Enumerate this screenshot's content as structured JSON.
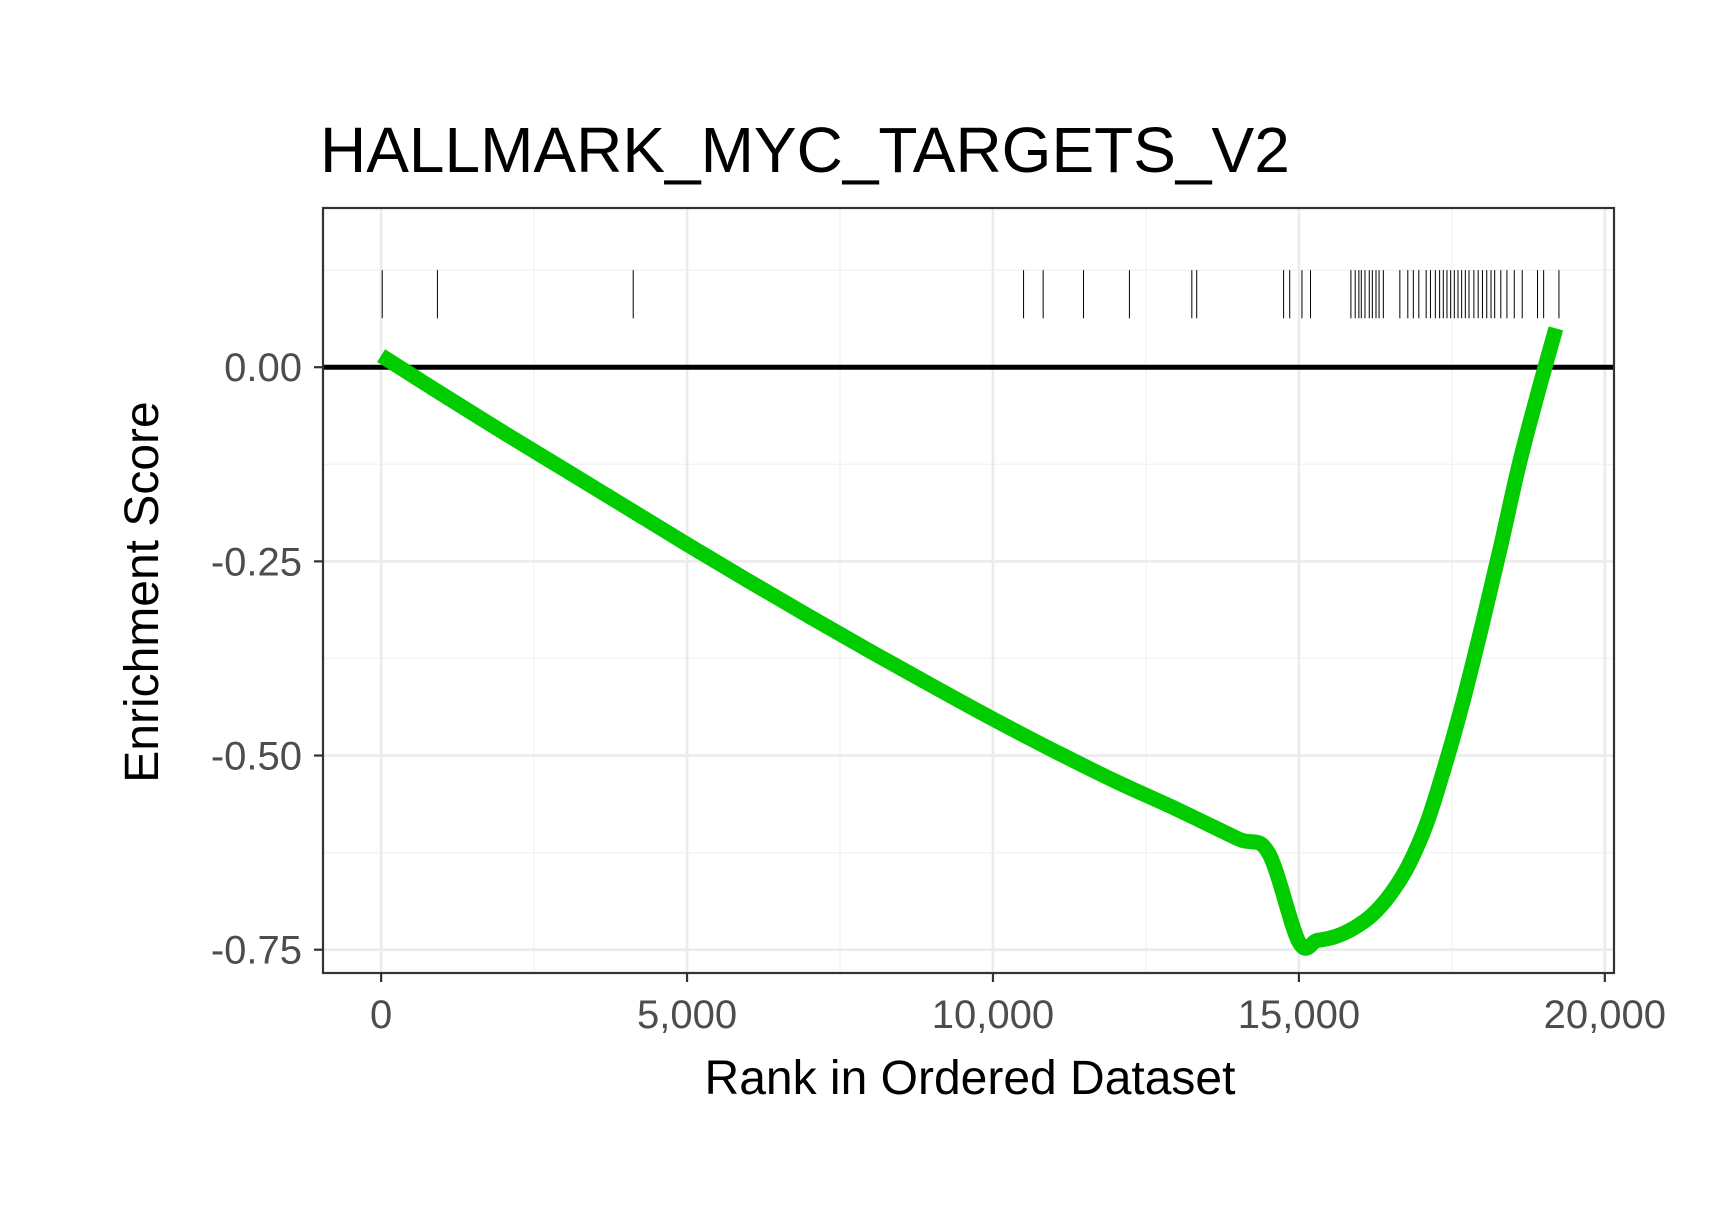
{
  "chart_data": {
    "type": "line",
    "title": "HALLMARK_MYC_TARGETS_V2",
    "xlabel": "Rank in Ordered Dataset",
    "ylabel": "Enrichment Score",
    "xlim": [
      -950,
      20150
    ],
    "ylim": [
      -0.78,
      0.205
    ],
    "x_ticks": [
      0,
      5000,
      10000,
      15000,
      20000
    ],
    "x_tick_labels": [
      "0",
      "5,000",
      "10,000",
      "15,000",
      "20,000"
    ],
    "x_minor_ticks": [
      2500,
      7500,
      12500,
      17500
    ],
    "y_ticks": [
      0,
      -0.25,
      -0.5,
      -0.75
    ],
    "y_tick_labels": [
      "0.00",
      "-0.25",
      "-0.50",
      "-0.75"
    ],
    "y_minor_ticks": [
      0.125,
      -0.125,
      -0.375,
      -0.625
    ],
    "grid": true,
    "zero_line": 0,
    "series": [
      {
        "color": "#00cc00",
        "x": [
          0,
          500,
          1000,
          2000,
          3000,
          4000,
          5000,
          6000,
          7000,
          8000,
          9000,
          10000,
          11000,
          12000,
          13000,
          14000,
          14500,
          15000,
          15300,
          15600,
          15900,
          16200,
          16500,
          16800,
          17100,
          17400,
          17700,
          18000,
          18300,
          18600,
          18900,
          19200
        ],
        "y": [
          0.015,
          -0.01,
          -0.035,
          -0.084,
          -0.132,
          -0.18,
          -0.228,
          -0.275,
          -0.321,
          -0.366,
          -0.41,
          -0.453,
          -0.494,
          -0.533,
          -0.569,
          -0.607,
          -0.625,
          -0.74,
          -0.738,
          -0.733,
          -0.722,
          -0.705,
          -0.678,
          -0.64,
          -0.585,
          -0.51,
          -0.425,
          -0.33,
          -0.23,
          -0.125,
          -0.035,
          0.05
        ]
      }
    ],
    "hits": [
      18,
      920,
      4120,
      10500,
      10820,
      11480,
      12230,
      13250,
      13330,
      14750,
      14850,
      15050,
      15190,
      15850,
      15920,
      15980,
      16020,
      16080,
      16150,
      16200,
      16260,
      16310,
      16380,
      16650,
      16780,
      16870,
      16960,
      17080,
      17150,
      17230,
      17300,
      17360,
      17420,
      17480,
      17540,
      17600,
      17660,
      17720,
      17780,
      17860,
      17930,
      18000,
      18070,
      18140,
      18200,
      18300,
      18400,
      18520,
      18650,
      18900,
      19000,
      19250
    ],
    "hit_ymin": 0.063,
    "hit_ymax": 0.125
  }
}
